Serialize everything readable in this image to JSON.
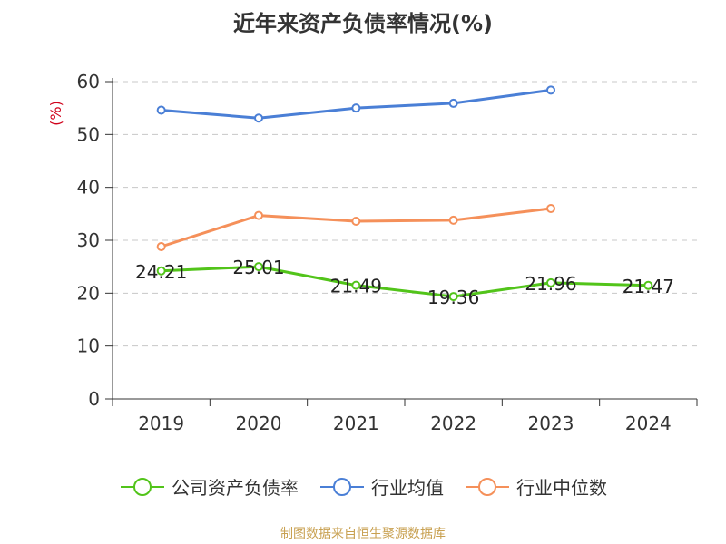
{
  "title": "近年来资产负债率情况(%)",
  "source": "制图数据来自恒生聚源数据库",
  "chart_data": {
    "type": "line",
    "title": "近年来资产负债率情况(%)",
    "ylabel": "(%)",
    "xlabel": "",
    "categories": [
      "2019",
      "2020",
      "2021",
      "2022",
      "2023",
      "2024"
    ],
    "ylim": [
      0,
      60
    ],
    "yticks": [
      0,
      10,
      20,
      30,
      40,
      50,
      60
    ],
    "grid": true,
    "legend_position": "bottom",
    "series": [
      {
        "name": "公司资产负债率",
        "color": "#52c41a",
        "values": [
          24.21,
          25.01,
          21.49,
          19.36,
          21.96,
          21.47
        ],
        "data_labels": [
          "24.21",
          "25.01",
          "21.49",
          "19.36",
          "21.96",
          "21.47"
        ]
      },
      {
        "name": "行业均值",
        "color": "#4a7fd6",
        "values": [
          54.6,
          53.1,
          55.0,
          55.9,
          58.4,
          null
        ]
      },
      {
        "name": "行业中位数",
        "color": "#f5905a",
        "values": [
          28.8,
          34.7,
          33.6,
          33.8,
          36.0,
          null
        ]
      }
    ]
  }
}
